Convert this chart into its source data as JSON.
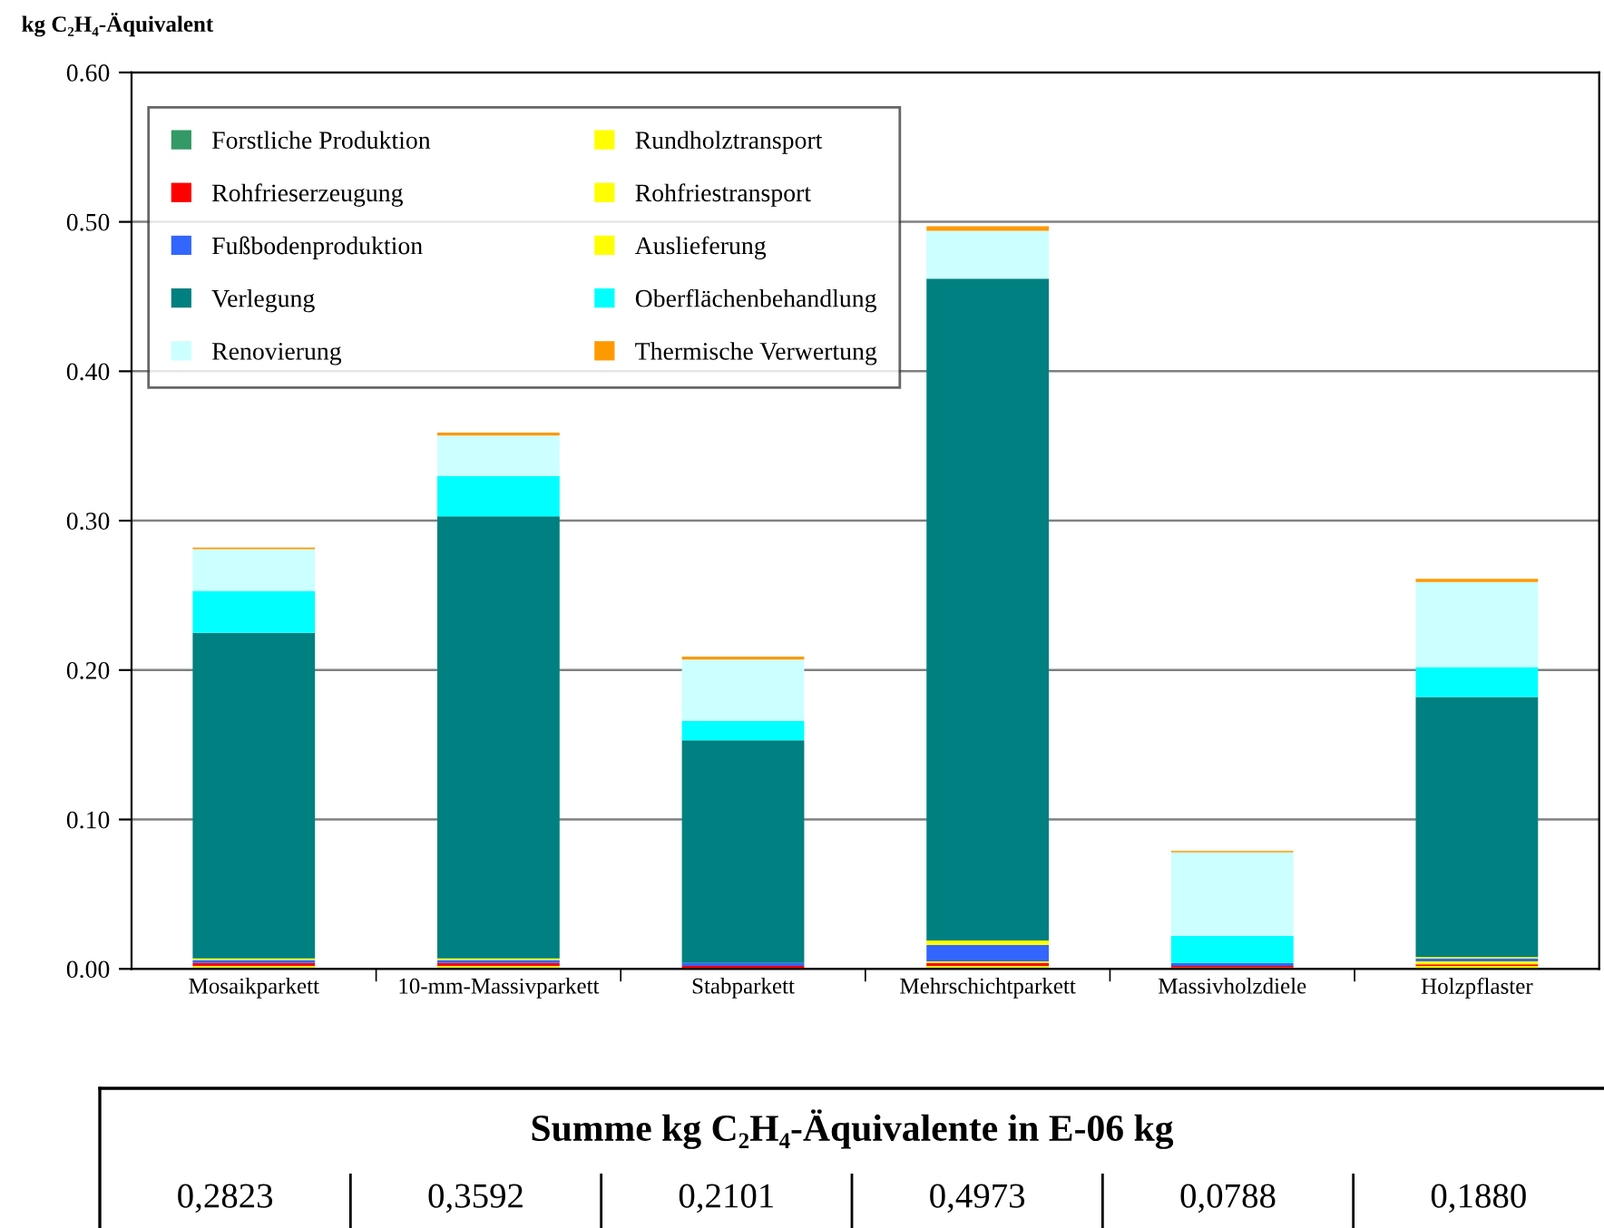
{
  "chart_data": {
    "type": "bar",
    "stacked": true,
    "ylabel": "kg C₂H₄-Äquivalent",
    "categories": [
      "Mosaikparkett",
      "10-mm-Massivparkett",
      "Stabparkett",
      "Mehrschichtparkett",
      "Massivholzdiele",
      "Holzpflaster"
    ],
    "series": [
      {
        "name": "Forstliche Produktion",
        "color": "#339966",
        "values": [
          0.001,
          0.001,
          null,
          0.001,
          0.001,
          null
        ]
      },
      {
        "name": "Rundholztransport",
        "color": "#ffff00",
        "values": [
          0.001,
          0.001,
          0,
          0.001,
          0,
          0.002
        ]
      },
      {
        "name": "Rohfrieserzeugung",
        "color": "#ff0000",
        "values": [
          0.002,
          0.002,
          0.002,
          0.002,
          0.001,
          0.001
        ]
      },
      {
        "name": "Rohfriestransport",
        "color": "#ffff00",
        "values": [
          0,
          0,
          0,
          0.001,
          0,
          0.002
        ]
      },
      {
        "name": "Fußbodenproduktion",
        "color": "#3366ff",
        "values": [
          0.002,
          0.002,
          0.002,
          0.011,
          0.002,
          0.002
        ]
      },
      {
        "name": "Auslieferung",
        "color": "#ffff00",
        "values": [
          0.001,
          0.001,
          0,
          0.003,
          0,
          0.001
        ]
      },
      {
        "name": "Verlegung",
        "color": "#008080",
        "values": [
          0.218,
          0.296,
          0.149,
          0.443,
          0,
          0.174
        ]
      },
      {
        "name": "Oberflächenbehandlung",
        "color": "#00ffff",
        "values": [
          0.028,
          0.027,
          0.013,
          0,
          0.018,
          0.02
        ]
      },
      {
        "name": "Renovierung",
        "color": "#ccffff",
        "values": [
          0.028,
          0.027,
          0.041,
          0.032,
          0.056,
          0.057
        ]
      },
      {
        "name": "Thermische Verwertung",
        "color": "#ff9900",
        "values": [
          0.001,
          0.002,
          0.002,
          0.003,
          0.001,
          0.002
        ]
      }
    ],
    "ylim": [
      0,
      0.6
    ],
    "yticks": [
      {
        "value": 0,
        "label": "0.00"
      },
      {
        "value": 0.1,
        "label": "0.10"
      },
      {
        "value": 0.2,
        "label": "0.20"
      },
      {
        "value": 0.3,
        "label": "0.30"
      },
      {
        "value": 0.4,
        "label": "0.40"
      },
      {
        "value": 0.5,
        "label": "0.50"
      },
      {
        "value": 0.6,
        "label": "0.60"
      }
    ],
    "grid": "y",
    "legend": "top left",
    "annotations": [
      "Summe kg C₂H₄-Äquivalente in E-06 kg",
      "0,2823",
      "0,3592",
      "0,2101",
      "0,4973",
      "0,0788",
      "0,1880"
    ]
  }
}
